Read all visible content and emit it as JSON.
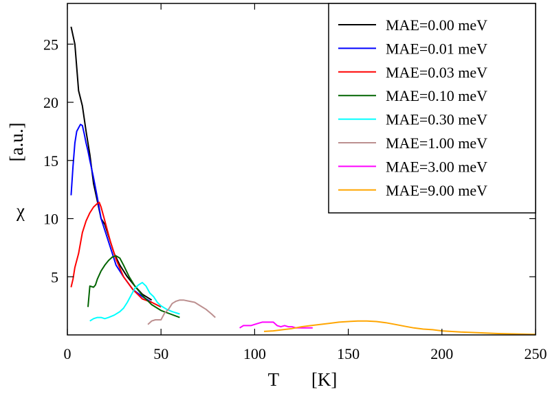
{
  "chart_data": {
    "type": "line",
    "title": "",
    "xlabel": "T       [K]",
    "ylabel_symbol": "χ",
    "ylabel_unit": "[a.u.]",
    "xlim": [
      0,
      250
    ],
    "ylim": [
      0,
      28.5
    ],
    "xticks": [
      0,
      50,
      100,
      150,
      200,
      250
    ],
    "yticks": [
      5,
      10,
      15,
      20,
      25
    ],
    "xtick_labels": [
      "0",
      "50",
      "100",
      "150",
      "200",
      "250"
    ],
    "ytick_labels": [
      "5",
      "10",
      "15",
      "20",
      "25"
    ],
    "grid": false,
    "legend_position": "top-right",
    "series": [
      {
        "name": "MAE=0.00 meV",
        "color": "#000000",
        "x": [
          2,
          4,
          6,
          8,
          10,
          12,
          14,
          16,
          18,
          20,
          22,
          25,
          28,
          32,
          36,
          40,
          45
        ],
        "y": [
          26.5,
          25,
          21,
          19.7,
          17.5,
          15.5,
          13,
          11.5,
          10,
          9.5,
          8.5,
          7,
          6,
          5,
          4.2,
          3.5,
          3.0
        ]
      },
      {
        "name": "MAE=0.01 meV",
        "color": "#0000ff",
        "x": [
          2,
          3,
          4,
          5,
          6,
          7,
          8,
          9,
          10,
          11,
          12,
          14,
          16,
          18,
          20,
          23,
          26,
          30,
          35,
          40,
          45
        ],
        "y": [
          12,
          14.5,
          16.5,
          17.5,
          17.8,
          18.1,
          18.0,
          17.3,
          16.5,
          15.8,
          15.0,
          13.5,
          11.8,
          10.0,
          9.0,
          7.5,
          6.0,
          5.0,
          3.9,
          3.3,
          2.8
        ]
      },
      {
        "name": "MAE=0.03 meV",
        "color": "#ff0000",
        "x": [
          2,
          3,
          4,
          6,
          8,
          10,
          12,
          14,
          16,
          17,
          18,
          20,
          23,
          26,
          30,
          35,
          40,
          45,
          50
        ],
        "y": [
          4.1,
          4.8,
          5.8,
          7.0,
          8.8,
          9.8,
          10.5,
          11.0,
          11.3,
          11.4,
          11.0,
          9.8,
          8.0,
          6.5,
          5.0,
          3.9,
          3.1,
          2.8,
          2.4
        ]
      },
      {
        "name": "MAE=0.10 meV",
        "color": "#006400",
        "x": [
          11,
          12,
          14,
          15,
          16,
          18,
          20,
          22,
          24,
          26,
          28,
          30,
          33,
          36,
          40,
          45,
          50,
          55,
          60
        ],
        "y": [
          2.4,
          4.2,
          4.1,
          4.3,
          4.8,
          5.5,
          6.0,
          6.4,
          6.7,
          6.8,
          6.6,
          6.0,
          5.0,
          4.2,
          3.4,
          2.6,
          2.1,
          1.8,
          1.5
        ]
      },
      {
        "name": "MAE=0.30 meV",
        "color": "#00ffff",
        "x": [
          12,
          14,
          16,
          18,
          20,
          22,
          25,
          28,
          30,
          32,
          34,
          36,
          38,
          40,
          42,
          44,
          46,
          48,
          50,
          53,
          56,
          60
        ],
        "y": [
          1.2,
          1.4,
          1.5,
          1.5,
          1.4,
          1.5,
          1.7,
          2.0,
          2.3,
          2.8,
          3.4,
          4.0,
          4.3,
          4.5,
          4.2,
          3.6,
          3.3,
          2.8,
          2.5,
          2.2,
          2.0,
          1.8
        ]
      },
      {
        "name": "MAE=1.00 meV",
        "color": "#bc8f8f",
        "x": [
          43,
          45,
          47,
          50,
          52,
          54,
          56,
          58,
          60,
          62,
          65,
          68,
          71,
          74,
          77,
          79
        ],
        "y": [
          0.9,
          1.2,
          1.3,
          1.3,
          1.9,
          2.2,
          2.7,
          2.9,
          3.0,
          3.0,
          2.9,
          2.8,
          2.5,
          2.2,
          1.8,
          1.5
        ]
      },
      {
        "name": "MAE=3.00 meV",
        "color": "#ff00ff",
        "x": [
          92,
          94,
          96,
          98,
          100,
          102,
          104,
          106,
          108,
          110,
          112,
          114,
          116,
          118,
          120,
          122,
          125,
          128,
          131
        ],
        "y": [
          0.6,
          0.8,
          0.8,
          0.8,
          0.9,
          1.0,
          1.1,
          1.1,
          1.1,
          1.1,
          0.8,
          0.7,
          0.8,
          0.7,
          0.7,
          0.6,
          0.6,
          0.6,
          0.6
        ]
      },
      {
        "name": "MAE=9.00 meV",
        "color": "#ffa500",
        "x": [
          105,
          110,
          115,
          120,
          125,
          130,
          135,
          140,
          145,
          150,
          155,
          160,
          165,
          170,
          175,
          180,
          185,
          190,
          195,
          200,
          210,
          220,
          230,
          240,
          250
        ],
        "y": [
          0.3,
          0.35,
          0.45,
          0.55,
          0.7,
          0.8,
          0.9,
          1.0,
          1.1,
          1.15,
          1.2,
          1.2,
          1.15,
          1.05,
          0.9,
          0.75,
          0.6,
          0.5,
          0.45,
          0.35,
          0.25,
          0.18,
          0.12,
          0.08,
          0.05
        ]
      }
    ]
  }
}
